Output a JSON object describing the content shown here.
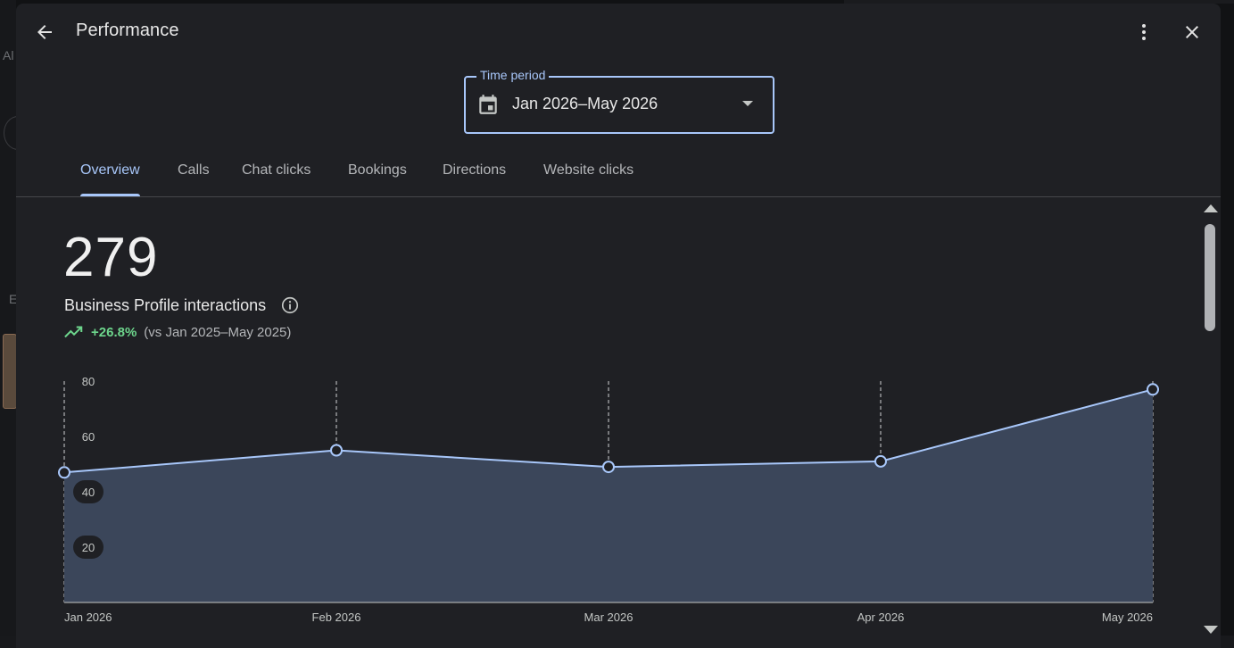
{
  "background": {
    "left_text_1": "Al",
    "left_text_2": "E"
  },
  "header": {
    "title": "Performance",
    "back_icon": "arrow-back-icon",
    "more_icon": "more-vert-icon",
    "close_icon": "close-icon"
  },
  "time_period": {
    "label": "Time period",
    "value": "Jan 2026–May 2026",
    "icon": "calendar-icon"
  },
  "tabs": [
    {
      "label": "Overview",
      "active": true
    },
    {
      "label": "Calls",
      "active": false
    },
    {
      "label": "Chat clicks",
      "active": false
    },
    {
      "label": "Bookings",
      "active": false
    },
    {
      "label": "Directions",
      "active": false
    },
    {
      "label": "Website clicks",
      "active": false
    }
  ],
  "summary": {
    "total": "279",
    "metric_label": "Business Profile interactions",
    "trend_value": "+26.8%",
    "trend_compare": "(vs Jan 2025–May 2025)"
  },
  "colors": {
    "accent": "#a8c7fa",
    "trend_up": "#6dd58c",
    "area_fill": "#3b465a"
  },
  "chart_data": {
    "type": "area",
    "x": [
      "Jan 2026",
      "Feb 2026",
      "Mar 2026",
      "Apr 2026",
      "May 2026"
    ],
    "values": [
      47,
      55,
      49,
      51,
      77
    ],
    "y_ticks": [
      "80",
      "60",
      "40",
      "20"
    ],
    "ylim": [
      0,
      80
    ],
    "grid": "vertical-dashed"
  }
}
